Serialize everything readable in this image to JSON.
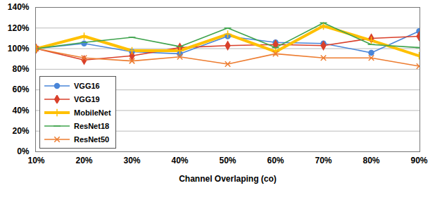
{
  "chart_data": {
    "type": "line",
    "x_label": "Channel Overlaping (co)",
    "categories": [
      "10%",
      "20%",
      "30%",
      "40%",
      "50%",
      "60%",
      "70%",
      "80%",
      "90%"
    ],
    "series": [
      {
        "name": "VGG16",
        "color": "#4A86D8",
        "marker": "circle",
        "line_style": "solid",
        "values": [
          100,
          105,
          97,
          95,
          112,
          106,
          105,
          96,
          117
        ]
      },
      {
        "name": "VGG19",
        "color": "#D9402B",
        "marker": "diamond",
        "line_style": "solid",
        "values": [
          100,
          89,
          93,
          101,
          103,
          104,
          103,
          110,
          112
        ]
      },
      {
        "name": "MobileNet",
        "color": "#FFC000",
        "marker": "plus",
        "line_style": "thick",
        "values": [
          100,
          112,
          98,
          98,
          114,
          97,
          122,
          108,
          93
        ]
      },
      {
        "name": "ResNet18",
        "color": "#3FA34D",
        "marker": "dash",
        "line_style": "solid",
        "values": [
          100,
          106,
          111,
          102,
          120,
          101,
          125,
          104,
          101
        ]
      },
      {
        "name": "ResNet50",
        "color": "#ED7D31",
        "marker": "x",
        "line_style": "solid",
        "values": [
          100,
          91,
          88,
          92,
          85,
          95,
          91,
          91,
          83
        ]
      }
    ],
    "ylim": [
      0,
      140
    ],
    "yticks": [
      {
        "value": 0,
        "label": "0%"
      },
      {
        "value": 20,
        "label": "20%"
      },
      {
        "value": 40,
        "label": "40%"
      },
      {
        "value": 60,
        "label": "60%"
      },
      {
        "value": 80,
        "label": "80%"
      },
      {
        "value": 100,
        "label": "100%"
      },
      {
        "value": 120,
        "label": "120%"
      },
      {
        "value": 140,
        "label": "140%"
      }
    ],
    "grid": true,
    "legend": "lower left"
  }
}
